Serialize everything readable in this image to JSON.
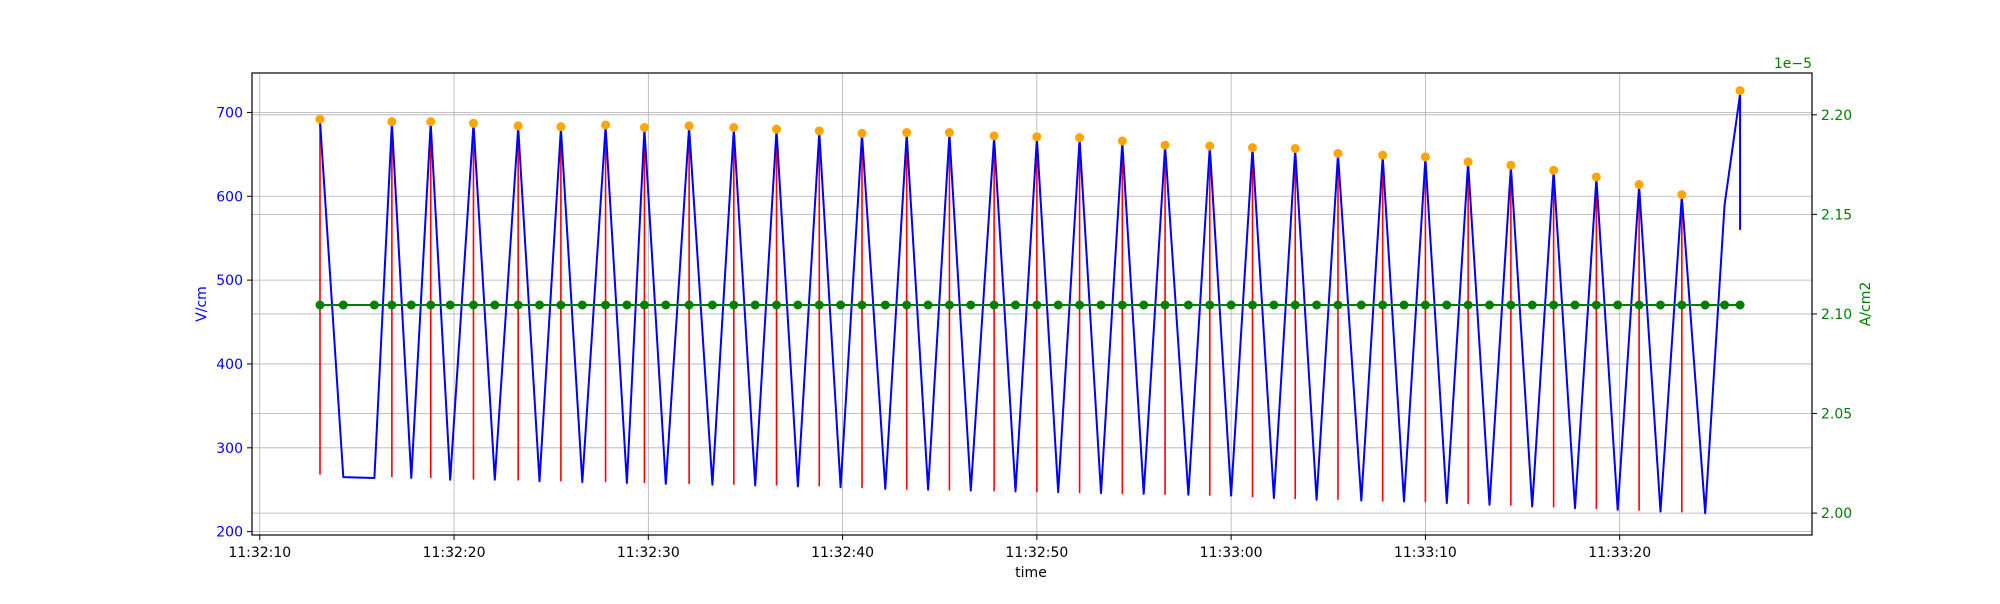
{
  "chart_data": {
    "type": "line",
    "xlabel": "time",
    "x_ticks": [
      "11:32:10",
      "11:32:20",
      "11:32:30",
      "11:32:40",
      "11:32:50",
      "11:33:00",
      "11:33:10",
      "11:33:20"
    ],
    "x_tick_seconds": [
      0,
      10,
      20,
      30,
      40,
      50,
      60,
      70
    ],
    "xlim": [
      -0.4,
      79.9
    ],
    "grid": true,
    "left_axis": {
      "label": "V/cm",
      "ylim": [
        196,
        747
      ],
      "ticks": [
        200,
        300,
        400,
        500,
        600,
        700
      ],
      "color": "#0000ff"
    },
    "right_axis": {
      "label": "A/cm2",
      "offset_text": "1e−5",
      "ylim": [
        1.989,
        2.221
      ],
      "ticks": [
        2.0,
        2.05,
        2.1,
        2.15,
        2.2
      ],
      "tick_labels": [
        "2.00",
        "2.05",
        "2.10",
        "2.15",
        "2.20"
      ],
      "color": "#008000"
    },
    "series": [
      {
        "kind": "line",
        "axis": "left",
        "color": "#0000ff",
        "points": [
          [
            3.1,
            690
          ],
          [
            4.3,
            265
          ],
          [
            5.9,
            264
          ],
          [
            6.8,
            687
          ],
          [
            7.8,
            264
          ],
          [
            8.8,
            687
          ],
          [
            9.8,
            262
          ],
          [
            11.0,
            686
          ],
          [
            12.1,
            262
          ],
          [
            13.3,
            682
          ],
          [
            14.4,
            260
          ],
          [
            15.5,
            681
          ],
          [
            16.6,
            259
          ],
          [
            17.8,
            683
          ],
          [
            18.9,
            258
          ],
          [
            19.8,
            680
          ],
          [
            20.9,
            257
          ],
          [
            22.1,
            682
          ],
          [
            23.3,
            256
          ],
          [
            24.4,
            680
          ],
          [
            25.5,
            255
          ],
          [
            26.6,
            679
          ],
          [
            27.7,
            254
          ],
          [
            28.8,
            676
          ],
          [
            29.9,
            253
          ],
          [
            31.0,
            674
          ],
          [
            32.2,
            251
          ],
          [
            33.3,
            674
          ],
          [
            34.4,
            250
          ],
          [
            35.5,
            674
          ],
          [
            36.6,
            249
          ],
          [
            37.8,
            670
          ],
          [
            38.9,
            248
          ],
          [
            40.0,
            669
          ],
          [
            41.1,
            247
          ],
          [
            42.2,
            668
          ],
          [
            43.3,
            246
          ],
          [
            44.4,
            664
          ],
          [
            45.5,
            245
          ],
          [
            46.6,
            660
          ],
          [
            47.8,
            244
          ],
          [
            48.9,
            659
          ],
          [
            50.0,
            243
          ],
          [
            51.1,
            657
          ],
          [
            52.2,
            240
          ],
          [
            53.3,
            655
          ],
          [
            54.4,
            238
          ],
          [
            55.5,
            650
          ],
          [
            56.7,
            237
          ],
          [
            57.8,
            647
          ],
          [
            58.9,
            236
          ],
          [
            60.0,
            645
          ],
          [
            61.1,
            234
          ],
          [
            62.2,
            640
          ],
          [
            63.3,
            232
          ],
          [
            64.4,
            635
          ],
          [
            65.5,
            230
          ],
          [
            66.6,
            630
          ],
          [
            67.7,
            228
          ],
          [
            68.8,
            621
          ],
          [
            69.9,
            226
          ],
          [
            71.0,
            612
          ],
          [
            72.1,
            224
          ],
          [
            73.2,
            600
          ],
          [
            74.4,
            222
          ],
          [
            75.4,
            590
          ],
          [
            76.2,
            722
          ],
          [
            76.2,
            560
          ]
        ]
      },
      {
        "kind": "vlines",
        "axis": "left",
        "color": "#ff0000",
        "bars": [
          [
            3.1,
            268,
            690
          ],
          [
            6.8,
            265,
            687
          ],
          [
            8.8,
            264,
            687
          ],
          [
            11.0,
            262,
            686
          ],
          [
            13.3,
            261,
            682
          ],
          [
            15.5,
            260,
            681
          ],
          [
            17.8,
            259,
            683
          ],
          [
            19.8,
            258,
            680
          ],
          [
            22.1,
            257,
            682
          ],
          [
            24.4,
            256,
            680
          ],
          [
            26.6,
            255,
            679
          ],
          [
            28.8,
            254,
            676
          ],
          [
            31.0,
            252,
            674
          ],
          [
            33.3,
            250,
            674
          ],
          [
            35.5,
            249,
            674
          ],
          [
            37.8,
            248,
            670
          ],
          [
            40.0,
            247,
            669
          ],
          [
            42.2,
            246,
            668
          ],
          [
            44.4,
            245,
            664
          ],
          [
            46.6,
            244,
            660
          ],
          [
            48.9,
            243,
            659
          ],
          [
            51.1,
            241,
            657
          ],
          [
            53.3,
            239,
            655
          ],
          [
            55.5,
            238,
            650
          ],
          [
            57.8,
            236,
            647
          ],
          [
            60.0,
            235,
            645
          ],
          [
            62.2,
            233,
            640
          ],
          [
            64.4,
            231,
            635
          ],
          [
            66.6,
            229,
            630
          ],
          [
            68.8,
            227,
            621
          ],
          [
            71.0,
            225,
            612
          ],
          [
            73.2,
            223,
            600
          ],
          [
            76.2,
            560,
            725
          ]
        ]
      },
      {
        "kind": "scatter",
        "axis": "left",
        "color": "#ffa500",
        "points": [
          [
            3.1,
            692
          ],
          [
            6.8,
            689
          ],
          [
            8.8,
            689
          ],
          [
            11.0,
            687
          ],
          [
            13.3,
            684
          ],
          [
            15.5,
            683
          ],
          [
            17.8,
            685
          ],
          [
            19.8,
            682
          ],
          [
            22.1,
            684
          ],
          [
            24.4,
            682
          ],
          [
            26.6,
            680
          ],
          [
            28.8,
            678
          ],
          [
            31.0,
            675
          ],
          [
            33.3,
            676
          ],
          [
            35.5,
            676
          ],
          [
            37.8,
            672
          ],
          [
            40.0,
            671
          ],
          [
            42.2,
            670
          ],
          [
            44.4,
            666
          ],
          [
            46.6,
            661
          ],
          [
            48.9,
            660
          ],
          [
            51.1,
            658
          ],
          [
            53.3,
            657
          ],
          [
            55.5,
            651
          ],
          [
            57.8,
            649
          ],
          [
            60.0,
            647
          ],
          [
            62.2,
            641
          ],
          [
            64.4,
            637
          ],
          [
            66.6,
            631
          ],
          [
            68.8,
            623
          ],
          [
            71.0,
            614
          ],
          [
            73.2,
            602
          ],
          [
            76.2,
            726
          ]
        ]
      },
      {
        "kind": "line-markers",
        "axis": "right",
        "color": "#008000",
        "y": 2.1045,
        "x": [
          3.1,
          4.3,
          5.9,
          6.8,
          7.8,
          8.8,
          9.8,
          11.0,
          12.1,
          13.3,
          14.4,
          15.5,
          16.6,
          17.8,
          18.9,
          19.8,
          20.9,
          22.1,
          23.3,
          24.4,
          25.5,
          26.6,
          27.7,
          28.8,
          29.9,
          31.0,
          32.2,
          33.3,
          34.4,
          35.5,
          36.6,
          37.8,
          38.9,
          40.0,
          41.1,
          42.2,
          43.3,
          44.4,
          45.5,
          46.6,
          47.8,
          48.9,
          50.0,
          51.1,
          52.2,
          53.3,
          54.4,
          55.5,
          56.7,
          57.8,
          58.9,
          60.0,
          61.1,
          62.2,
          63.3,
          64.4,
          65.5,
          66.6,
          67.7,
          68.8,
          69.9,
          71.0,
          72.1,
          73.2,
          74.4,
          75.4,
          76.2
        ]
      }
    ]
  }
}
